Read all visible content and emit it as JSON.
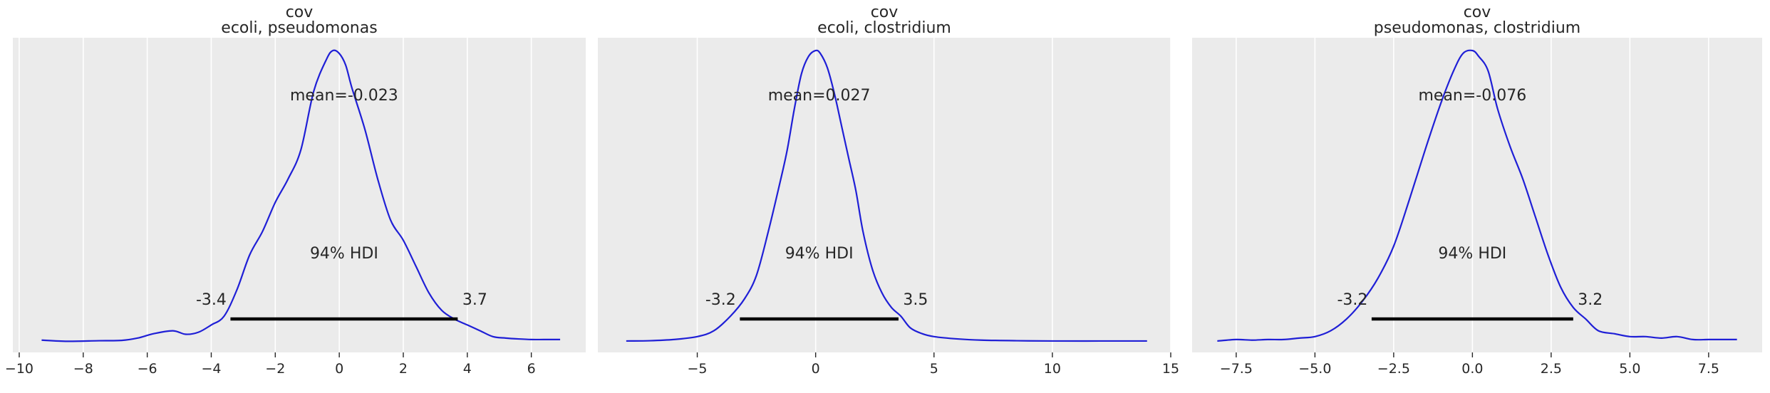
{
  "chart_data": [
    {
      "type": "density",
      "title_line1": "cov",
      "title_line2": "ecoli, pseudomonas",
      "mean_label": "mean=-0.023",
      "hdi_label": "94% HDI",
      "hdi": [
        -3.4,
        3.7
      ],
      "hdi_low_label": "-3.4",
      "hdi_high_label": "3.7",
      "xlim": [
        -10.2,
        7.7
      ],
      "xticks": [
        -10,
        -8,
        -6,
        -4,
        -2,
        0,
        2,
        4,
        6
      ],
      "xtick_labels": [
        "−10",
        "−8",
        "−6",
        "−4",
        "−2",
        "0",
        "2",
        "4",
        "6"
      ],
      "line_color": "#1f1fd6",
      "curve": {
        "x": [
          -9.3,
          -8.5,
          -7.5,
          -6.8,
          -6.3,
          -5.8,
          -5.2,
          -4.8,
          -4.4,
          -4.0,
          -3.6,
          -3.2,
          -2.8,
          -2.4,
          -2.0,
          -1.6,
          -1.2,
          -0.8,
          -0.4,
          -0.2,
          0.0,
          0.2,
          0.4,
          0.8,
          1.2,
          1.6,
          2.0,
          2.4,
          2.8,
          3.2,
          3.6,
          4.0,
          4.4,
          4.8,
          5.2,
          5.6,
          6.0,
          6.4,
          6.9
        ],
        "y": [
          0.008,
          0.004,
          0.006,
          0.007,
          0.015,
          0.03,
          0.04,
          0.028,
          0.035,
          0.06,
          0.09,
          0.18,
          0.3,
          0.38,
          0.48,
          0.56,
          0.66,
          0.86,
          0.97,
          1.0,
          0.99,
          0.95,
          0.87,
          0.73,
          0.56,
          0.42,
          0.35,
          0.26,
          0.17,
          0.11,
          0.08,
          0.06,
          0.04,
          0.02,
          0.015,
          0.012,
          0.01,
          0.01,
          0.01
        ]
      }
    },
    {
      "type": "density",
      "title_line1": "cov",
      "title_line2": "ecoli, clostridium",
      "mean_label": "mean=0.027",
      "hdi_label": "94% HDI",
      "hdi": [
        -3.2,
        3.5
      ],
      "hdi_low_label": "-3.2",
      "hdi_high_label": "3.5",
      "xlim": [
        -9.2,
        15.0
      ],
      "xticks": [
        -5,
        0,
        5,
        10,
        15
      ],
      "xtick_labels": [
        "−5",
        "0",
        "5",
        "10",
        "15"
      ],
      "line_color": "#1f1fd6",
      "curve": {
        "x": [
          -8.0,
          -7.0,
          -6.0,
          -5.0,
          -4.3,
          -3.6,
          -3.0,
          -2.5,
          -2.0,
          -1.5,
          -1.2,
          -0.9,
          -0.6,
          -0.3,
          0.0,
          0.2,
          0.5,
          0.8,
          1.1,
          1.4,
          1.7,
          2.0,
          2.4,
          2.8,
          3.2,
          3.6,
          4.0,
          4.5,
          5.0,
          6.0,
          7.0,
          8.5,
          10.0,
          12.0,
          14.0
        ],
        "y": [
          0.005,
          0.006,
          0.01,
          0.02,
          0.04,
          0.09,
          0.15,
          0.23,
          0.38,
          0.55,
          0.66,
          0.8,
          0.92,
          0.98,
          1.0,
          0.99,
          0.94,
          0.85,
          0.74,
          0.63,
          0.52,
          0.38,
          0.25,
          0.17,
          0.12,
          0.09,
          0.05,
          0.03,
          0.02,
          0.012,
          0.008,
          0.006,
          0.005,
          0.005,
          0.005
        ]
      }
    },
    {
      "type": "density",
      "title_line1": "cov",
      "title_line2": "pseudomonas, clostridium",
      "mean_label": "mean=-0.076",
      "hdi_label": "94% HDI",
      "hdi": [
        -3.2,
        3.2
      ],
      "hdi_low_label": "-3.2",
      "hdi_high_label": "3.2",
      "xlim": [
        -8.9,
        9.2
      ],
      "xticks": [
        -7.5,
        -5.0,
        -2.5,
        0.0,
        2.5,
        5.0,
        7.5
      ],
      "xtick_labels": [
        "−7.5",
        "−5.0",
        "−2.5",
        "0.0",
        "2.5",
        "5.0",
        "7.5"
      ],
      "line_color": "#1f1fd6",
      "curve": {
        "x": [
          -8.1,
          -7.5,
          -7.0,
          -6.5,
          -6.0,
          -5.5,
          -5.0,
          -4.5,
          -4.0,
          -3.5,
          -3.0,
          -2.5,
          -2.0,
          -1.5,
          -1.0,
          -0.6,
          -0.3,
          0.0,
          0.2,
          0.5,
          0.8,
          1.2,
          1.6,
          2.0,
          2.4,
          2.8,
          3.2,
          3.6,
          4.0,
          4.5,
          5.0,
          5.5,
          6.0,
          6.5,
          7.0,
          7.5,
          8.0,
          8.4
        ],
        "y": [
          0.005,
          0.01,
          0.008,
          0.01,
          0.01,
          0.015,
          0.02,
          0.04,
          0.08,
          0.14,
          0.22,
          0.33,
          0.49,
          0.66,
          0.82,
          0.93,
          0.99,
          1.0,
          0.98,
          0.93,
          0.8,
          0.67,
          0.56,
          0.43,
          0.3,
          0.19,
          0.12,
          0.08,
          0.04,
          0.03,
          0.02,
          0.02,
          0.015,
          0.02,
          0.01,
          0.01,
          0.01,
          0.01
        ]
      }
    }
  ]
}
